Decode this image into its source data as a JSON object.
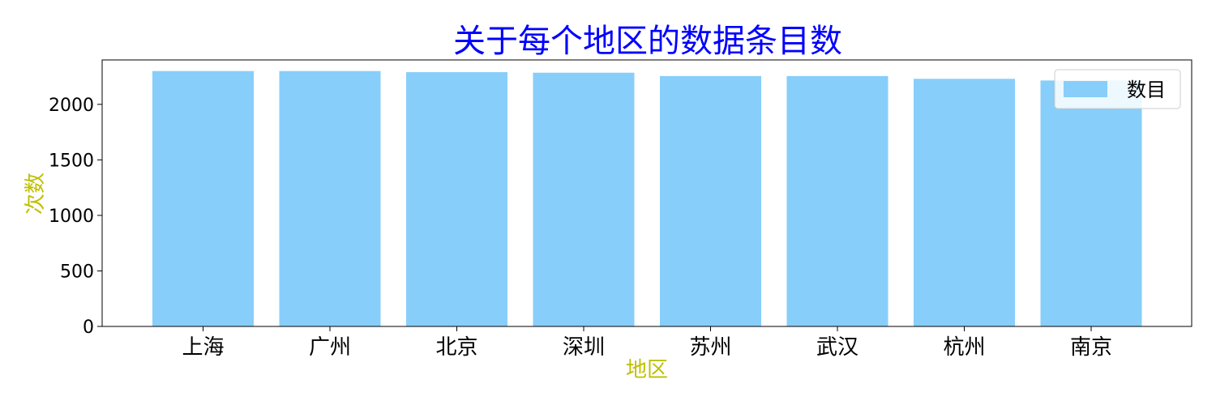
{
  "chart_data": {
    "type": "bar",
    "title": "关于每个地区的数据条目数",
    "xlabel": "地区",
    "ylabel": "次数",
    "categories": [
      "上海",
      "广州",
      "北京",
      "深圳",
      "苏州",
      "武汉",
      "杭州",
      "南京"
    ],
    "series": [
      {
        "name": "数目",
        "values": [
          2300,
          2300,
          2290,
          2285,
          2255,
          2255,
          2230,
          2215
        ]
      }
    ],
    "ylim": [
      0,
      2400
    ],
    "yticks": [
      0,
      500,
      1000,
      1500,
      2000
    ],
    "grid": false,
    "legend_position": "top-right",
    "colors": {
      "bar": "#87CEFA",
      "title": "#0000FF",
      "axis_label": "#BFBF00",
      "axes": "#000000"
    }
  }
}
